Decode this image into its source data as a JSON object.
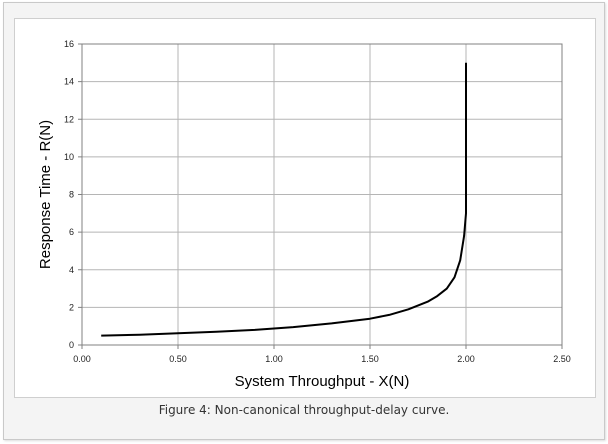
{
  "caption": "Figure 4: Non-canonical throughput-delay curve.",
  "chart_data": {
    "type": "line",
    "title": "",
    "xlabel": "System Throughput - X(N)",
    "ylabel": "Response Time - R(N)",
    "xlim": [
      0,
      2.5
    ],
    "ylim": [
      0,
      16
    ],
    "xticks": [
      "0.00",
      "0.50",
      "1.00",
      "1.50",
      "2.00",
      "2.50"
    ],
    "yticks": [
      "0",
      "2",
      "4",
      "6",
      "8",
      "10",
      "12",
      "14",
      "16"
    ],
    "grid": true,
    "legend": "none",
    "series": [
      {
        "color": "#000000",
        "x": [
          0.1,
          0.3,
          0.5,
          0.7,
          0.9,
          1.1,
          1.3,
          1.5,
          1.6,
          1.7,
          1.8,
          1.85,
          1.9,
          1.94,
          1.97,
          1.99,
          2.0,
          2.0,
          2.0
        ],
        "y": [
          0.5,
          0.55,
          0.62,
          0.7,
          0.8,
          0.95,
          1.15,
          1.4,
          1.6,
          1.9,
          2.3,
          2.6,
          3.0,
          3.6,
          4.5,
          5.8,
          7.0,
          10.0,
          15.0
        ]
      }
    ]
  }
}
